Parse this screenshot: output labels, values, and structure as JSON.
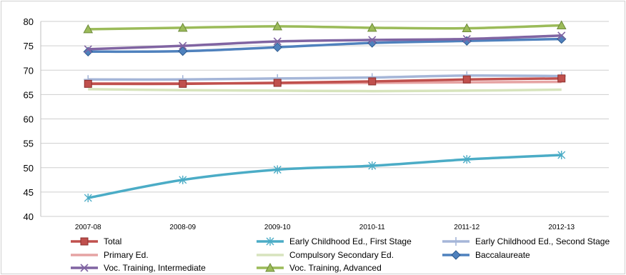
{
  "chart_data": {
    "type": "line",
    "title": "",
    "xlabel": "",
    "ylabel": "",
    "categories": [
      "2007-08",
      "2008-09",
      "2009-10",
      "2010-11",
      "2011-12",
      "2012-13"
    ],
    "ylim": [
      40,
      80
    ],
    "yticks": [
      40,
      45,
      50,
      55,
      60,
      65,
      70,
      75,
      80
    ],
    "grid": true,
    "legend": "bottom",
    "series": [
      {
        "name": "Total",
        "color": "#c0504d",
        "marker": "square",
        "values": [
          67.2,
          67.2,
          67.4,
          67.7,
          68.1,
          68.3
        ]
      },
      {
        "name": "Early Childhood Ed., First Stage",
        "color": "#4bacc6",
        "marker": "asterisk",
        "values": [
          43.8,
          47.5,
          49.6,
          50.4,
          51.7,
          52.6
        ]
      },
      {
        "name": "Early Childhood Ed., Second Stage",
        "color": "#a5b6d8",
        "marker": "plus",
        "values": [
          68.1,
          68.1,
          68.3,
          68.5,
          68.9,
          68.8
        ]
      },
      {
        "name": "Primary Ed.",
        "color": "#e6a3a3",
        "marker": "none",
        "values": [
          67.3,
          67.3,
          67.3,
          67.4,
          67.5,
          67.6
        ]
      },
      {
        "name": "Compulsory Secondary Ed.",
        "color": "#d7e4bd",
        "marker": "none",
        "values": [
          66.1,
          65.9,
          65.8,
          65.7,
          65.8,
          66.0
        ]
      },
      {
        "name": "Baccalaureate",
        "color": "#4f81bd",
        "marker": "diamond",
        "values": [
          73.8,
          73.9,
          74.7,
          75.6,
          76.0,
          76.4
        ]
      },
      {
        "name": "Voc. Training, Intermediate",
        "color": "#8064a2",
        "marker": "x",
        "values": [
          74.3,
          75.0,
          75.9,
          76.2,
          76.4,
          77.1
        ]
      },
      {
        "name": "Voc. Training, Advanced",
        "color": "#9bbb59",
        "marker": "triangle",
        "values": [
          78.4,
          78.7,
          79.0,
          78.7,
          78.6,
          79.2
        ]
      }
    ]
  }
}
